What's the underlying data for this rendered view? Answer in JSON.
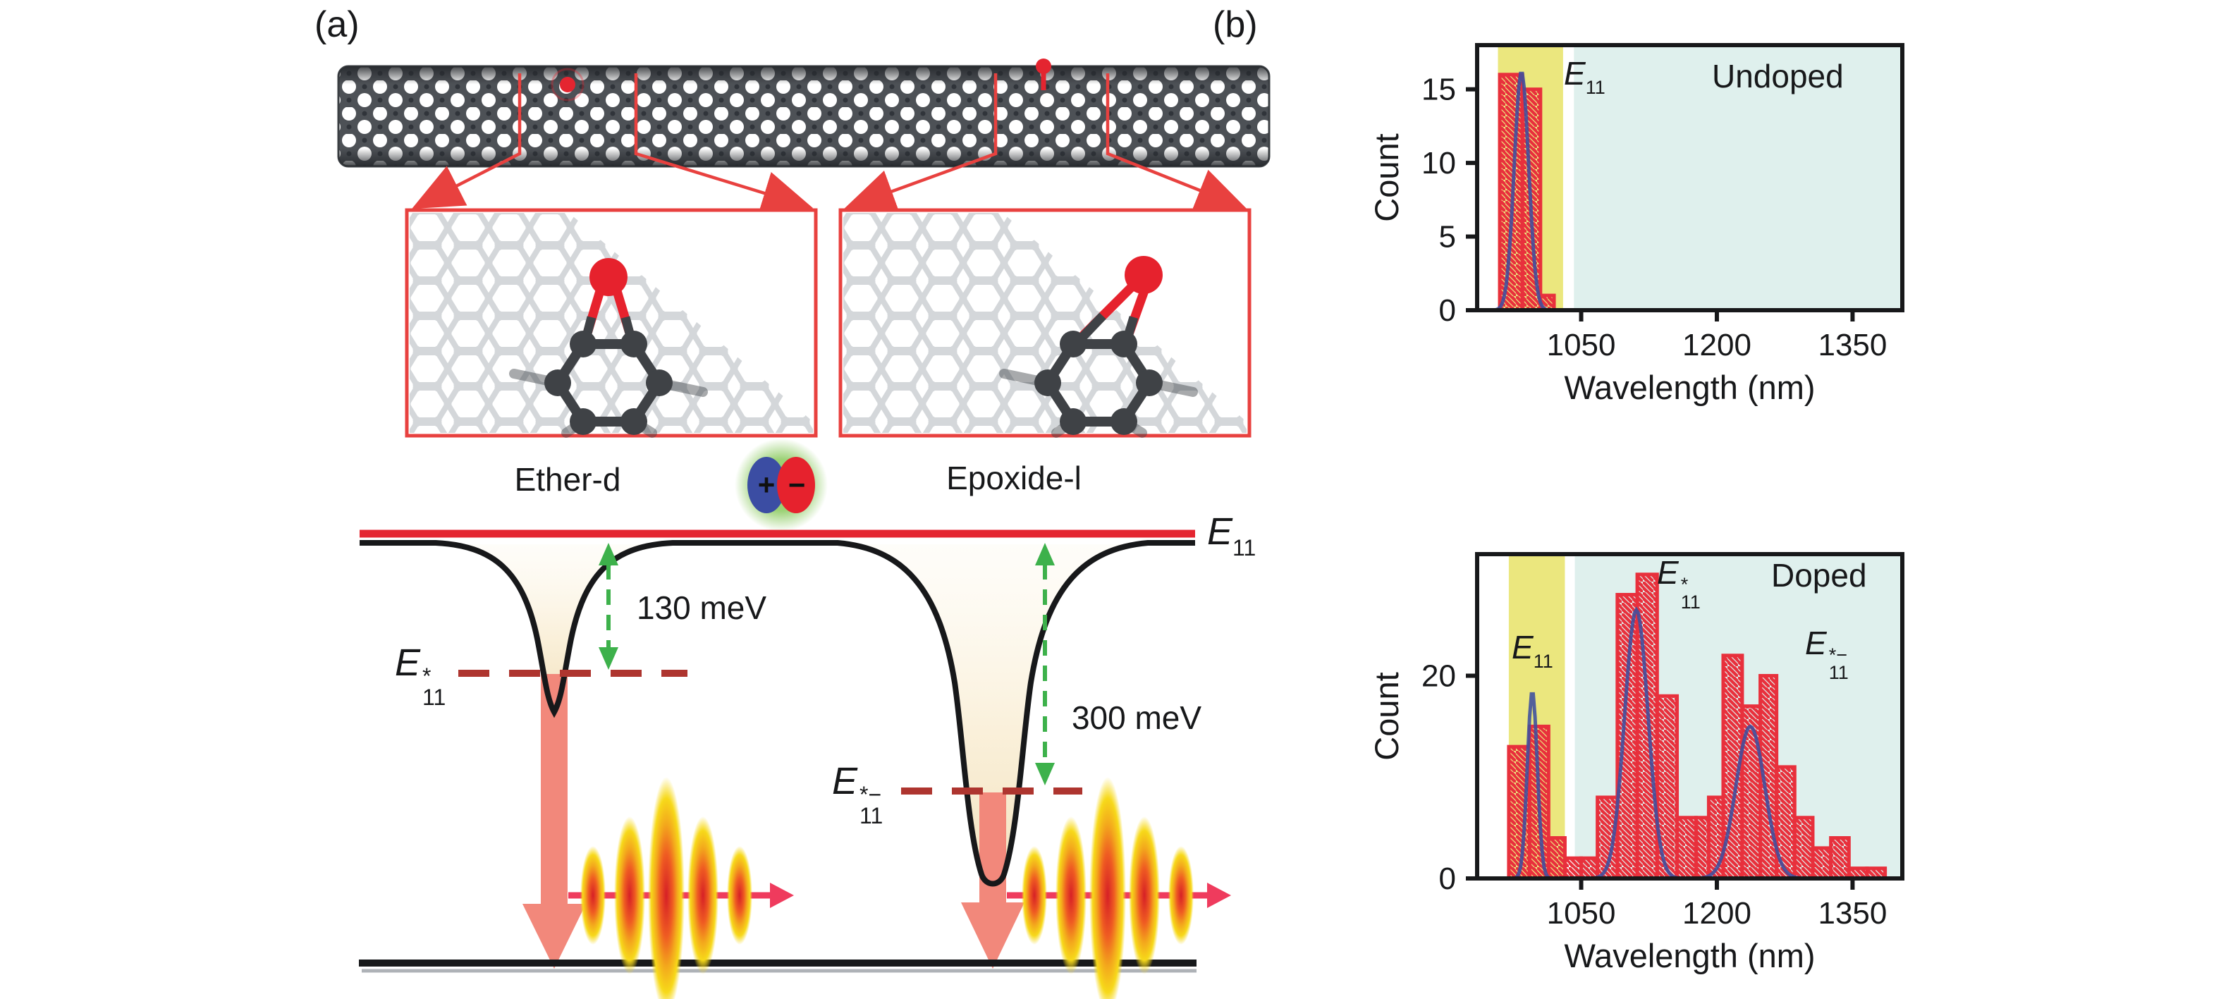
{
  "panel_a": {
    "label": "(a)",
    "defect_left_label": "Ether-d",
    "defect_right_label": "Epoxide-l",
    "exciton_icon": {
      "plus": "+",
      "minus": "−"
    },
    "e11_line_label": {
      "base": "E",
      "sub": "11"
    },
    "left_trap_level_label": {
      "base": "E",
      "sup": "*",
      "sub": "11"
    },
    "right_trap_level_label": {
      "base": "E",
      "sup": "*−",
      "sub": "11"
    },
    "left_trap_depth": "130 meV",
    "right_trap_depth": "300 meV"
  },
  "panel_b": {
    "label": "(b)",
    "plots": [
      {
        "peak1_label": {
          "base": "E",
          "sub": "11"
        }
      },
      {
        "peak1_label": {
          "base": "E",
          "sub": "11"
        },
        "peak2_label": {
          "base": "E",
          "sup": "*",
          "sub": "11"
        },
        "peak3_label": {
          "base": "E",
          "sup": "*−",
          "sub": "11"
        }
      }
    ]
  },
  "chart_data": [
    {
      "type": "bar",
      "subtype": "histogram",
      "title": "Undoped",
      "xlabel": "Wavelength (nm)",
      "ylabel": "Count",
      "xlim": [
        935,
        1405
      ],
      "ylim": [
        0,
        18
      ],
      "xticks": [
        1050,
        1200,
        1350
      ],
      "yticks": [
        0,
        5,
        10,
        15
      ],
      "grid": false,
      "legend": "none",
      "bands": [
        {
          "name": "e11-excitation",
          "from": 958,
          "to": 1030,
          "color": "#ebe77e"
        },
        {
          "name": "defect-emission",
          "from": 1042,
          "to": 1405,
          "color": "#dff0ed"
        }
      ],
      "bin_edges": [
        960,
        985,
        1005,
        1020
      ],
      "counts": [
        16,
        15,
        1
      ],
      "fit_gaussians": [
        {
          "amp": 16.2,
          "mu": 984,
          "sigma": 8
        }
      ],
      "colors": {
        "bar": "#e8303c",
        "fit": "#3c4f9f"
      }
    },
    {
      "type": "bar",
      "subtype": "histogram",
      "title": "Doped",
      "xlabel": "Wavelength (nm)",
      "ylabel": "Count",
      "xlim": [
        935,
        1405
      ],
      "ylim": [
        0,
        32
      ],
      "xticks": [
        1050,
        1200,
        1350
      ],
      "yticks": [
        0,
        20
      ],
      "grid": false,
      "legend": "none",
      "bands": [
        {
          "name": "e11-excitation",
          "from": 970,
          "to": 1032,
          "color": "#ebe77e"
        },
        {
          "name": "defect-emission",
          "from": 1043,
          "to": 1405,
          "color": "#dff0ed"
        }
      ],
      "bin_edges": [
        970,
        993,
        1014,
        1032,
        1050,
        1068,
        1090,
        1112,
        1134,
        1156,
        1177,
        1191,
        1207,
        1228,
        1248,
        1266,
        1286,
        1306,
        1326,
        1346,
        1366,
        1386
      ],
      "counts": [
        13,
        15,
        4,
        2,
        2,
        8,
        28,
        30,
        18,
        6,
        6,
        8,
        22,
        17,
        20,
        11,
        6,
        3,
        4,
        1,
        1
      ],
      "fit_gaussians": [
        {
          "amp": 18.5,
          "mu": 996,
          "sigma": 5.5
        },
        {
          "amp": 26.5,
          "mu": 1111,
          "sigma": 13
        },
        {
          "amp": 15.0,
          "mu": 1237,
          "sigma": 16
        }
      ],
      "colors": {
        "bar": "#e8303c",
        "fit": "#3c4f9f"
      }
    }
  ],
  "colors": {
    "accent_red": "#e8303c",
    "e11_line_red": "#e42530",
    "callout_red": "#e8413f",
    "salmon_arrow": "#f2887b",
    "trap_dash_maroon": "#ae352f",
    "arrow_green": "#3db14b",
    "pulse_arrow_pink": "#ef3b5d",
    "fit_blue": "#3c4f9f",
    "e11_band_yellow": "#ebe77e",
    "detection_band_cyan": "#dff0ed",
    "axis_black": "#17181a",
    "tube_gray": "#4d5156"
  }
}
